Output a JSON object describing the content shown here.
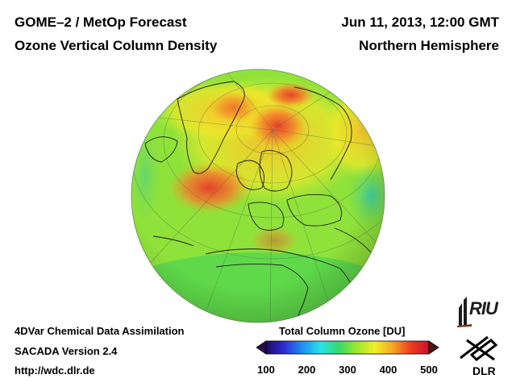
{
  "header": {
    "title_line1": "GOME–2 / MetOp Forecast",
    "title_line2": "Ozone Vertical Column Density",
    "date": "Jun 11, 2013, 12:00 GMT",
    "region": "Northern Hemisphere"
  },
  "footer": {
    "line1": "4DVar Chemical Data Assimilation",
    "line2": "SACADA Version 2.4",
    "line3": "http://wdc.dlr.de"
  },
  "colorbar": {
    "title": "Total Column Ozone [DU]",
    "ticks": [
      "100",
      "200",
      "300",
      "400",
      "500"
    ],
    "range": [
      100,
      500
    ],
    "colors": [
      "#1b0a66",
      "#2e2cd6",
      "#1f8ff2",
      "#28e2ea",
      "#35d96a",
      "#9be82f",
      "#f2f02a",
      "#f5a623",
      "#ee3b24",
      "#c4122e"
    ]
  },
  "map": {
    "projection": "orthographic",
    "center": "north-atlantic / western europe",
    "background_color": "#8fe23a",
    "high_ozone_color": "#f0503a"
  },
  "logos": {
    "riu_text": "RIU",
    "dlr_text": "DLR"
  }
}
